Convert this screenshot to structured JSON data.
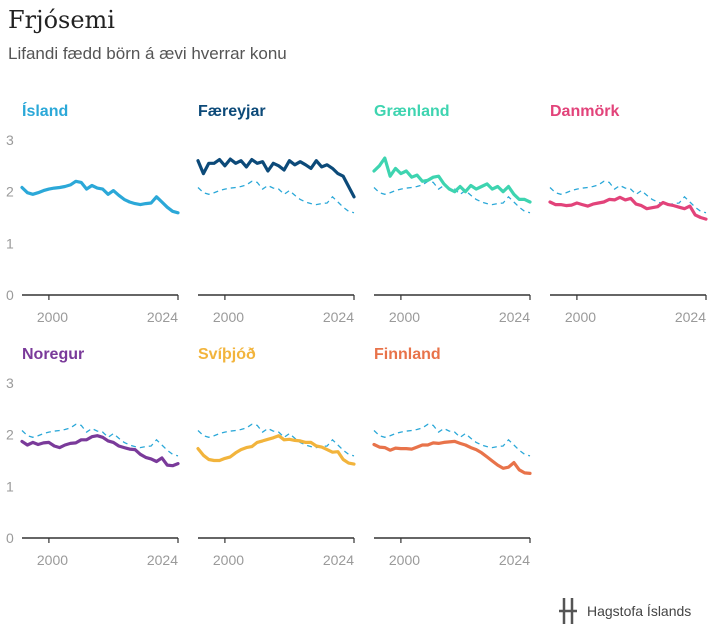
{
  "header": {
    "title": "Frjósemi",
    "subtitle": "Lifandi fædd börn á ævi hverrar konu"
  },
  "logo": {
    "text": "Hagstofa Íslands",
    "icon": "hagstofa-logo-icon"
  },
  "chart_data": {
    "type": "line",
    "x_ticks": [
      "2000",
      "2024"
    ],
    "y_ticks": [
      "0",
      "1",
      "2",
      "3"
    ],
    "ylim": [
      0,
      3
    ],
    "xlim": [
      1995,
      2024
    ],
    "grid": false,
    "reference_series": "Ísland",
    "panels": [
      {
        "name": "Ísland",
        "color": "#2ba8d8",
        "x": [
          1995,
          1996,
          1997,
          1998,
          1999,
          2000,
          2001,
          2002,
          2003,
          2004,
          2005,
          2006,
          2007,
          2008,
          2009,
          2010,
          2011,
          2012,
          2013,
          2014,
          2015,
          2016,
          2017,
          2018,
          2019,
          2020,
          2021,
          2022,
          2023,
          2024
        ],
        "values": [
          2.08,
          1.98,
          1.95,
          1.98,
          2.02,
          2.05,
          2.07,
          2.08,
          2.1,
          2.13,
          2.2,
          2.18,
          2.05,
          2.12,
          2.07,
          2.05,
          1.95,
          2.02,
          1.93,
          1.85,
          1.8,
          1.77,
          1.75,
          1.77,
          1.78,
          1.9,
          1.8,
          1.7,
          1.62,
          1.59
        ]
      },
      {
        "name": "Færeyjar",
        "color": "#0c4a79",
        "x": [
          1995,
          1996,
          1997,
          1998,
          1999,
          2000,
          2001,
          2002,
          2003,
          2004,
          2005,
          2006,
          2007,
          2008,
          2009,
          2010,
          2011,
          2012,
          2013,
          2014,
          2015,
          2016,
          2017,
          2018,
          2019,
          2020,
          2021,
          2022,
          2023,
          2024
        ],
        "values": [
          2.6,
          2.35,
          2.55,
          2.55,
          2.62,
          2.5,
          2.63,
          2.55,
          2.6,
          2.48,
          2.62,
          2.55,
          2.58,
          2.4,
          2.55,
          2.5,
          2.42,
          2.6,
          2.52,
          2.58,
          2.52,
          2.45,
          2.6,
          2.48,
          2.52,
          2.45,
          2.35,
          2.3,
          2.1,
          1.9
        ]
      },
      {
        "name": "Grænland",
        "color": "#3ed4b0",
        "x": [
          1995,
          1996,
          1997,
          1998,
          1999,
          2000,
          2001,
          2002,
          2003,
          2004,
          2005,
          2006,
          2007,
          2008,
          2009,
          2010,
          2011,
          2012,
          2013,
          2014,
          2015,
          2016,
          2017,
          2018,
          2019,
          2020,
          2021,
          2022,
          2023,
          2024
        ],
        "values": [
          2.4,
          2.5,
          2.65,
          2.3,
          2.45,
          2.35,
          2.4,
          2.28,
          2.32,
          2.2,
          2.22,
          2.28,
          2.3,
          2.15,
          2.05,
          2.0,
          2.1,
          2.0,
          2.12,
          2.05,
          2.1,
          2.15,
          2.05,
          2.1,
          2.0,
          2.1,
          1.95,
          1.85,
          1.85,
          1.8
        ]
      },
      {
        "name": "Danmörk",
        "color": "#e2437a",
        "x": [
          1995,
          1996,
          1997,
          1998,
          1999,
          2000,
          2001,
          2002,
          2003,
          2004,
          2005,
          2006,
          2007,
          2008,
          2009,
          2010,
          2011,
          2012,
          2013,
          2014,
          2015,
          2016,
          2017,
          2018,
          2019,
          2020,
          2021,
          2022,
          2023,
          2024
        ],
        "values": [
          1.8,
          1.75,
          1.75,
          1.73,
          1.74,
          1.78,
          1.75,
          1.72,
          1.76,
          1.78,
          1.8,
          1.85,
          1.84,
          1.89,
          1.84,
          1.87,
          1.76,
          1.73,
          1.67,
          1.69,
          1.71,
          1.79,
          1.75,
          1.73,
          1.7,
          1.67,
          1.72,
          1.55,
          1.5,
          1.47
        ]
      },
      {
        "name": "Noregur",
        "color": "#7a3a9a",
        "x": [
          1995,
          1996,
          1997,
          1998,
          1999,
          2000,
          2001,
          2002,
          2003,
          2004,
          2005,
          2006,
          2007,
          2008,
          2009,
          2010,
          2011,
          2012,
          2013,
          2014,
          2015,
          2016,
          2017,
          2018,
          2019,
          2020,
          2021,
          2022,
          2023,
          2024
        ],
        "values": [
          1.87,
          1.8,
          1.85,
          1.81,
          1.84,
          1.85,
          1.78,
          1.75,
          1.8,
          1.83,
          1.84,
          1.9,
          1.9,
          1.96,
          1.98,
          1.95,
          1.88,
          1.85,
          1.78,
          1.75,
          1.72,
          1.71,
          1.62,
          1.56,
          1.53,
          1.48,
          1.55,
          1.41,
          1.4,
          1.44
        ]
      },
      {
        "name": "Svíþjóð",
        "color": "#f2b43c",
        "x": [
          1995,
          1996,
          1997,
          1998,
          1999,
          2000,
          2001,
          2002,
          2003,
          2004,
          2005,
          2006,
          2007,
          2008,
          2009,
          2010,
          2011,
          2012,
          2013,
          2014,
          2015,
          2016,
          2017,
          2018,
          2019,
          2020,
          2021,
          2022,
          2023,
          2024
        ],
        "values": [
          1.73,
          1.6,
          1.52,
          1.5,
          1.5,
          1.54,
          1.57,
          1.65,
          1.71,
          1.75,
          1.77,
          1.85,
          1.88,
          1.91,
          1.94,
          1.98,
          1.9,
          1.91,
          1.89,
          1.88,
          1.85,
          1.85,
          1.78,
          1.76,
          1.71,
          1.66,
          1.67,
          1.52,
          1.45,
          1.43
        ]
      },
      {
        "name": "Finnland",
        "color": "#e8734a",
        "x": [
          1995,
          1996,
          1997,
          1998,
          1999,
          2000,
          2001,
          2002,
          2003,
          2004,
          2005,
          2006,
          2007,
          2008,
          2009,
          2010,
          2011,
          2012,
          2013,
          2014,
          2015,
          2016,
          2017,
          2018,
          2019,
          2020,
          2021,
          2022,
          2023,
          2024
        ],
        "values": [
          1.81,
          1.76,
          1.75,
          1.7,
          1.74,
          1.73,
          1.73,
          1.72,
          1.76,
          1.8,
          1.8,
          1.84,
          1.83,
          1.85,
          1.86,
          1.87,
          1.83,
          1.8,
          1.75,
          1.71,
          1.65,
          1.57,
          1.49,
          1.41,
          1.35,
          1.37,
          1.46,
          1.32,
          1.26,
          1.25
        ]
      }
    ]
  }
}
